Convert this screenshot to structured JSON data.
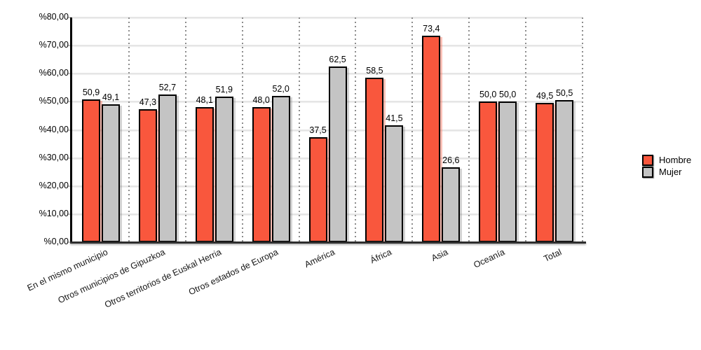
{
  "chart_data": {
    "type": "bar",
    "title": "",
    "categories": [
      "En el mismo municipio",
      "Otros municipios de Gipuzkoa",
      "Otros territorios de Euskal Herria",
      "Otros estados de Europa",
      "América",
      "África",
      "Asia",
      "Oceanía",
      "Total"
    ],
    "series": [
      {
        "name": "Hombre",
        "color": "#F9573D",
        "values": [
          50.9,
          47.3,
          48.1,
          48.0,
          37.5,
          58.5,
          73.4,
          50.0,
          49.5
        ],
        "labels": [
          "50,9",
          "47,3",
          "48,1",
          "48,0",
          "37,5",
          "58,5",
          "73,4",
          "50,0",
          "49,5"
        ]
      },
      {
        "name": "Mujer",
        "color": "#C4C4C4",
        "values": [
          49.1,
          52.7,
          51.9,
          52.0,
          62.5,
          41.5,
          26.6,
          50.0,
          50.5
        ],
        "labels": [
          "49,1",
          "52,7",
          "51,9",
          "52,0",
          "62,5",
          "41,5",
          "26,6",
          "50,0",
          "50,5"
        ]
      }
    ],
    "xlabel": "",
    "ylabel": "",
    "ylim": [
      0,
      80
    ],
    "ytick_step": 10,
    "ytick_labels": [
      "%0,00",
      "%10,00",
      "%20,00",
      "%30,00",
      "%40,00",
      "%50,00",
      "%60,00",
      "%70,00",
      "%80,00"
    ],
    "grid": "horizontal-solid, vertical-dotted-category-separators",
    "legend_position": "right",
    "bar_border_color": "#000000"
  },
  "legend": {
    "items": [
      {
        "label": "Hombre",
        "color": "#F9573D"
      },
      {
        "label": "Mujer",
        "color": "#C4C4C4"
      }
    ]
  }
}
